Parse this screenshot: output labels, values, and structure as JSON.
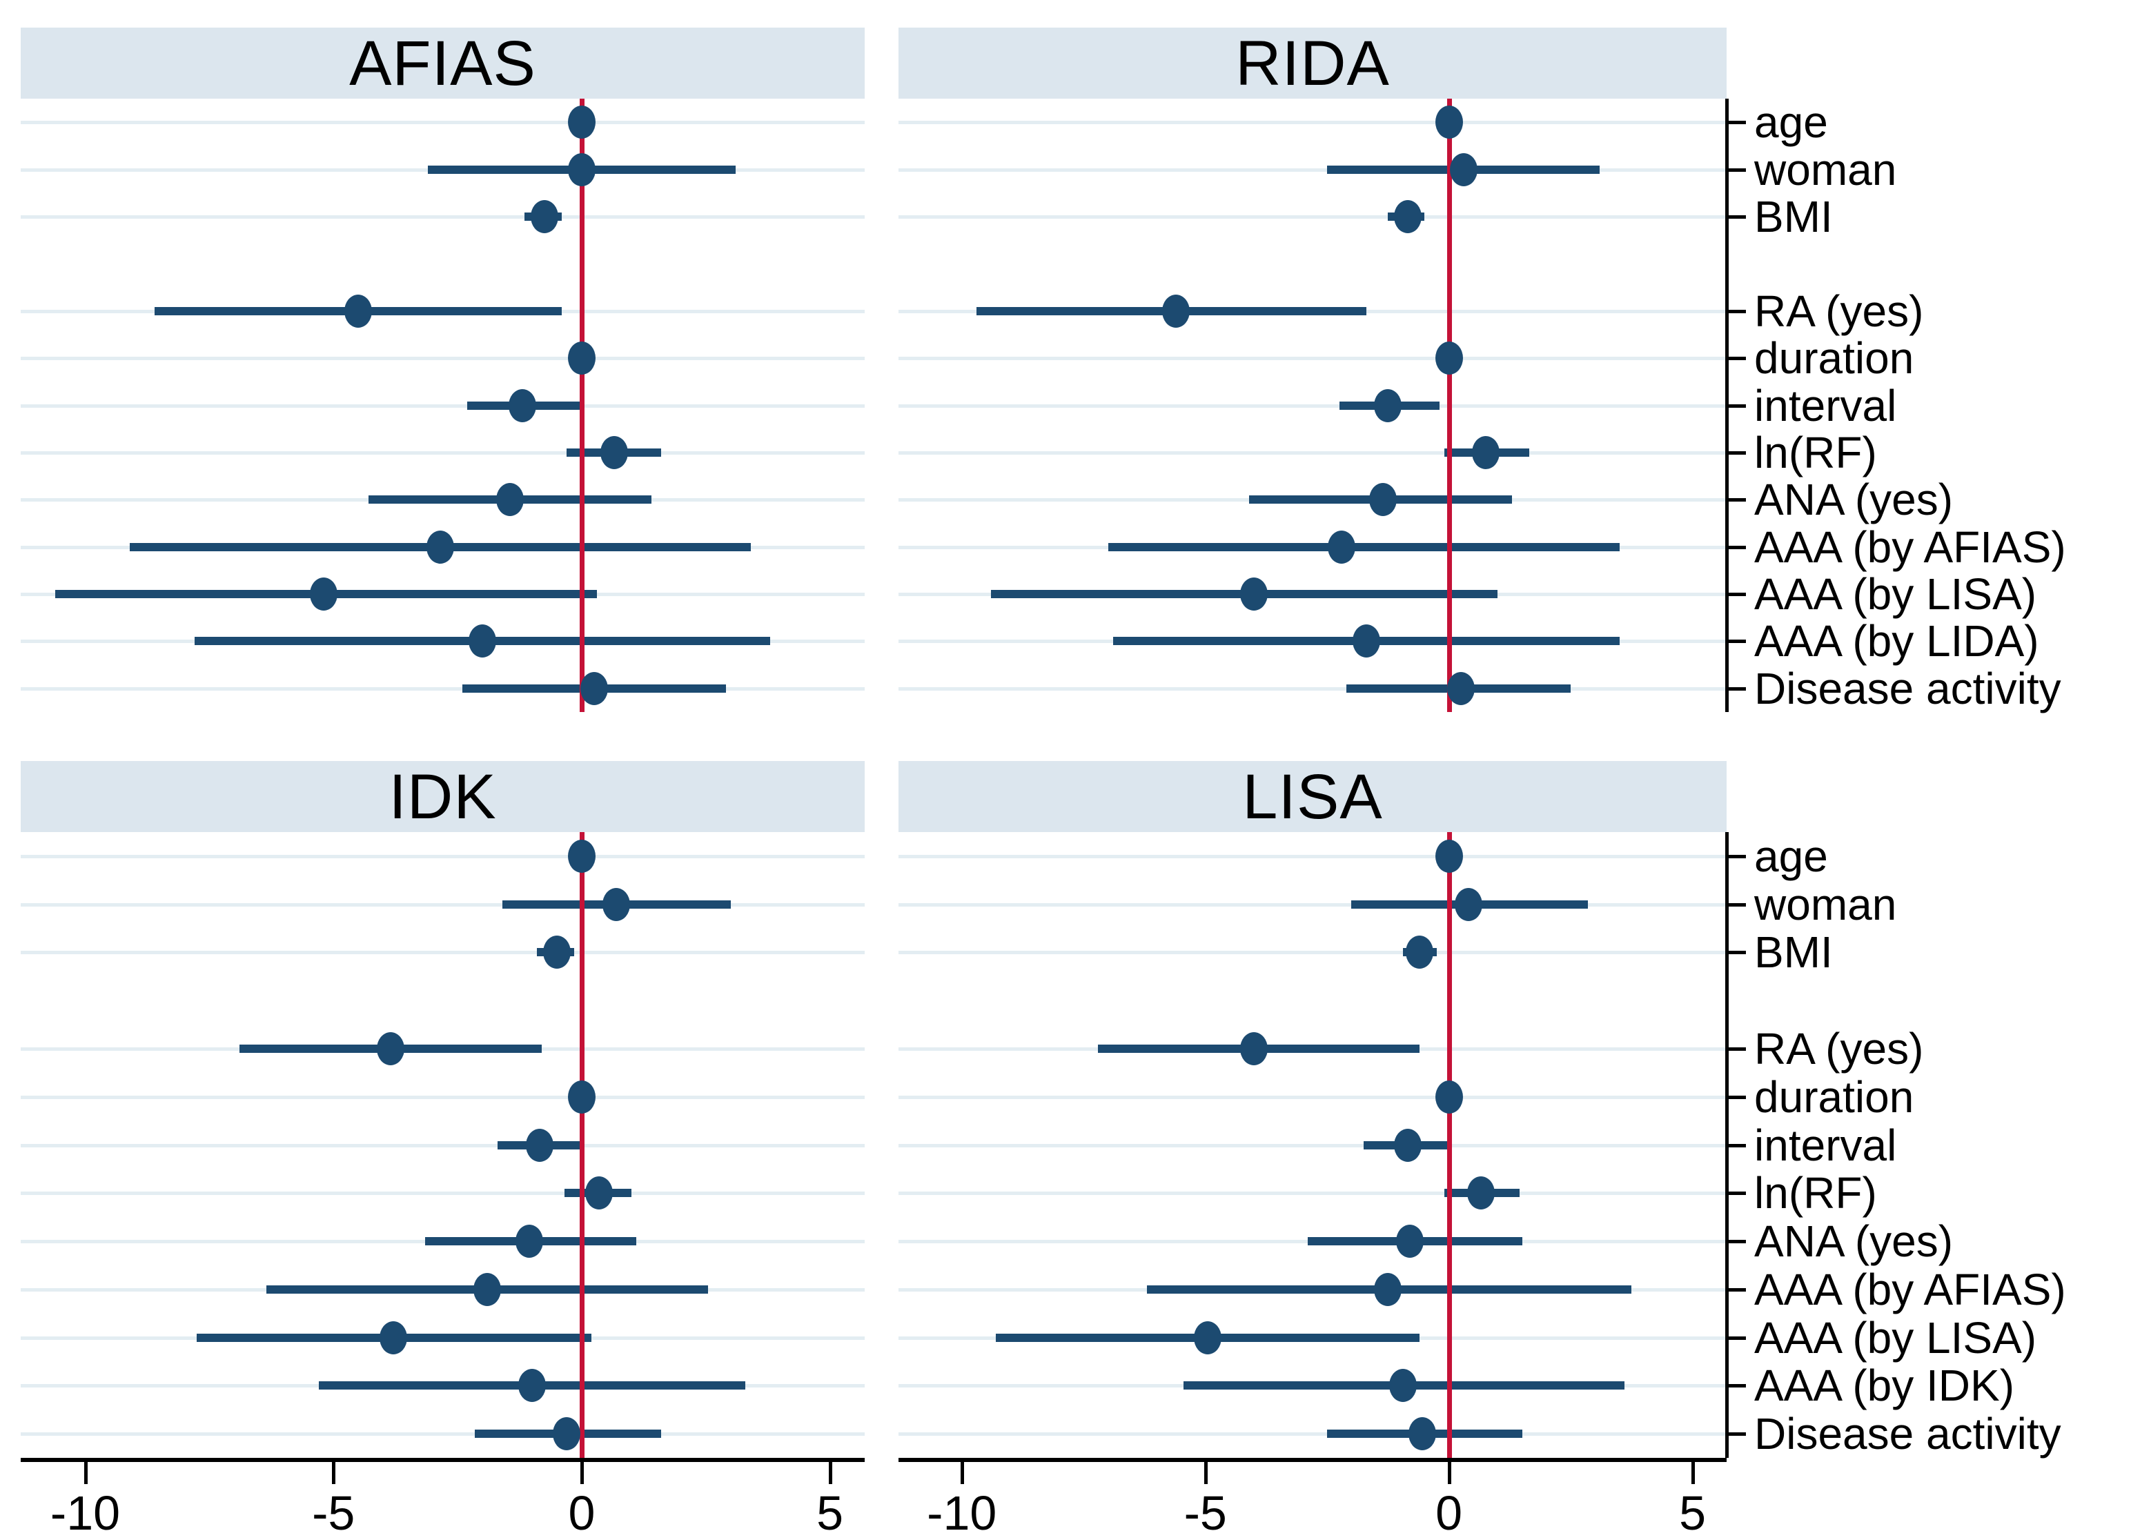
{
  "figure": {
    "kind": "forest-plot-grid",
    "panel_rows": 2,
    "panel_cols": 2
  },
  "colors": {
    "background": "#ffffff",
    "title_band": "#dce6ee",
    "gridline": "#e3edf2",
    "marker_navy": "#1c4a70",
    "zero_line_red": "#c41237",
    "axis_black": "#000000"
  },
  "chart_data": {
    "type": "scatter",
    "subtype": "forest-coefplot",
    "xlabel": "",
    "ylabel": "",
    "x_ticks": [
      -10,
      -5,
      0,
      5
    ],
    "x_range": [
      -11.3,
      5.7
    ],
    "zero_line_x": 0,
    "grid": "horizontal-row-gridlines",
    "legend_position": "none",
    "row_labels_top": [
      "age",
      "woman",
      "BMI",
      "RA (yes)",
      "duration",
      "interval",
      "ln(RF)",
      "ANA (yes)",
      "AAA (by AFIAS)",
      "AAA (by LISA)",
      "AAA (by LIDA)",
      "Disease activity"
    ],
    "row_labels_bottom": [
      "age",
      "woman",
      "BMI",
      "RA (yes)",
      "duration",
      "interval",
      "ln(RF)",
      "ANA (yes)",
      "AAA (by AFIAS)",
      "AAA (by LISA)",
      "AAA (by IDK)",
      "Disease activity"
    ],
    "gap_after_label_index": 2,
    "panels": [
      {
        "title": "AFIAS",
        "column": "left",
        "row": "top",
        "estimates": [
          {
            "label": "age",
            "est": 0.0,
            "lo": -0.2,
            "hi": 0.2
          },
          {
            "label": "woman",
            "est": 0.0,
            "lo": -3.1,
            "hi": 3.1
          },
          {
            "label": "BMI",
            "est": -0.75,
            "lo": -1.15,
            "hi": -0.4
          },
          {
            "label": "RA (yes)",
            "est": -4.5,
            "lo": -8.6,
            "hi": -0.4
          },
          {
            "label": "duration",
            "est": 0.0,
            "lo": -0.2,
            "hi": 0.15
          },
          {
            "label": "interval",
            "est": -1.2,
            "lo": -2.3,
            "hi": 0.0
          },
          {
            "label": "ln(RF)",
            "est": 0.65,
            "lo": -0.3,
            "hi": 1.6
          },
          {
            "label": "ANA (yes)",
            "est": -1.45,
            "lo": -4.3,
            "hi": 1.4
          },
          {
            "label": "AAA (by AFIAS)",
            "est": -2.85,
            "lo": -9.1,
            "hi": 3.4
          },
          {
            "label": "AAA (by LISA)",
            "est": -5.2,
            "lo": -10.6,
            "hi": 0.3
          },
          {
            "label": "AAA (by LIDA)",
            "est": -2.0,
            "lo": -7.8,
            "hi": 3.8
          },
          {
            "label": "Disease activity",
            "est": 0.25,
            "lo": -2.4,
            "hi": 2.9
          }
        ]
      },
      {
        "title": "RIDA",
        "column": "right",
        "row": "top",
        "estimates": [
          {
            "label": "age",
            "est": 0.0,
            "lo": -0.2,
            "hi": 0.2
          },
          {
            "label": "woman",
            "est": 0.3,
            "lo": -2.5,
            "hi": 3.1
          },
          {
            "label": "BMI",
            "est": -0.85,
            "lo": -1.25,
            "hi": -0.5
          },
          {
            "label": "RA (yes)",
            "est": -5.6,
            "lo": -9.7,
            "hi": -1.7
          },
          {
            "label": "duration",
            "est": 0.0,
            "lo": -0.2,
            "hi": 0.15
          },
          {
            "label": "interval",
            "est": -1.25,
            "lo": -2.25,
            "hi": -0.2
          },
          {
            "label": "ln(RF)",
            "est": 0.75,
            "lo": -0.1,
            "hi": 1.65
          },
          {
            "label": "ANA (yes)",
            "est": -1.35,
            "lo": -4.1,
            "hi": 1.3
          },
          {
            "label": "AAA (by AFIAS)",
            "est": -2.2,
            "lo": -7.0,
            "hi": 3.5
          },
          {
            "label": "AAA (by LISA)",
            "est": -4.0,
            "lo": -9.4,
            "hi": 1.0
          },
          {
            "label": "AAA (by LIDA)",
            "est": -1.7,
            "lo": -6.9,
            "hi": 3.5
          },
          {
            "label": "Disease activity",
            "est": 0.25,
            "lo": -2.1,
            "hi": 2.5
          }
        ]
      },
      {
        "title": "IDK",
        "column": "left",
        "row": "bottom",
        "estimates": [
          {
            "label": "age",
            "est": 0.0,
            "lo": -0.2,
            "hi": 0.2
          },
          {
            "label": "woman",
            "est": 0.7,
            "lo": -1.6,
            "hi": 3.0
          },
          {
            "label": "BMI",
            "est": -0.5,
            "lo": -0.9,
            "hi": -0.15
          },
          {
            "label": "RA (yes)",
            "est": -3.85,
            "lo": -6.9,
            "hi": -0.8
          },
          {
            "label": "duration",
            "est": 0.0,
            "lo": -0.2,
            "hi": 0.15
          },
          {
            "label": "interval",
            "est": -0.85,
            "lo": -1.7,
            "hi": 0.0
          },
          {
            "label": "ln(RF)",
            "est": 0.35,
            "lo": -0.35,
            "hi": 1.0
          },
          {
            "label": "ANA (yes)",
            "est": -1.05,
            "lo": -3.15,
            "hi": 1.1
          },
          {
            "label": "AAA (by AFIAS)",
            "est": -1.9,
            "lo": -6.35,
            "hi": 2.55
          },
          {
            "label": "AAA (by LISA)",
            "est": -3.8,
            "lo": -7.75,
            "hi": 0.2
          },
          {
            "label": "AAA (by IDK)",
            "est": -1.0,
            "lo": -5.3,
            "hi": 3.3
          },
          {
            "label": "Disease activity",
            "est": -0.3,
            "lo": -2.15,
            "hi": 1.6
          }
        ]
      },
      {
        "title": "LISA",
        "column": "right",
        "row": "bottom",
        "estimates": [
          {
            "label": "age",
            "est": 0.0,
            "lo": -0.2,
            "hi": 0.2
          },
          {
            "label": "woman",
            "est": 0.4,
            "lo": -2.0,
            "hi": 2.85
          },
          {
            "label": "BMI",
            "est": -0.6,
            "lo": -0.95,
            "hi": -0.25
          },
          {
            "label": "RA (yes)",
            "est": -4.0,
            "lo": -7.2,
            "hi": -0.6
          },
          {
            "label": "duration",
            "est": 0.0,
            "lo": -0.2,
            "hi": 0.15
          },
          {
            "label": "interval",
            "est": -0.85,
            "lo": -1.75,
            "hi": 0.0
          },
          {
            "label": "ln(RF)",
            "est": 0.65,
            "lo": -0.1,
            "hi": 1.45
          },
          {
            "label": "ANA (yes)",
            "est": -0.8,
            "lo": -2.9,
            "hi": 1.5
          },
          {
            "label": "AAA (by AFIAS)",
            "est": -1.25,
            "lo": -6.2,
            "hi": 3.75
          },
          {
            "label": "AAA (by LISA)",
            "est": -4.95,
            "lo": -9.3,
            "hi": -0.6
          },
          {
            "label": "AAA (by IDK)",
            "est": -0.95,
            "lo": -5.45,
            "hi": 3.6
          },
          {
            "label": "Disease activity",
            "est": -0.55,
            "lo": -2.5,
            "hi": 1.5
          }
        ]
      }
    ]
  }
}
